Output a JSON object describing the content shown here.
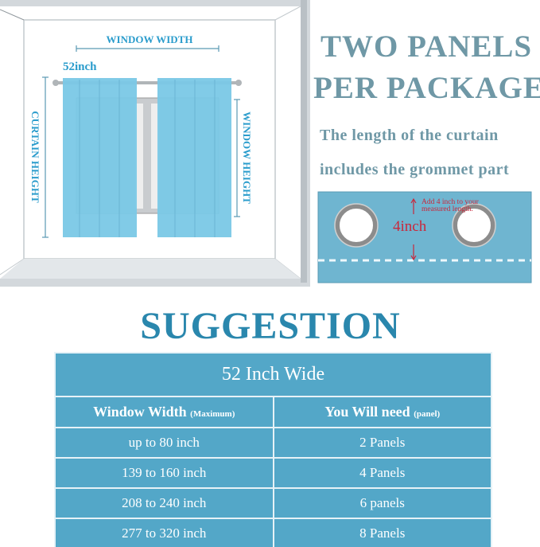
{
  "diagram": {
    "window_width_label": "WINDOW WIDTH",
    "panel_width_label": "52inch",
    "curtain_height_label": "CURTAIN HEIGHT",
    "window_height_label": "WINDOW HEIGHT"
  },
  "headline": {
    "line1": "TWO PANELS",
    "line2": "PER PACKAGE"
  },
  "note": {
    "line1": "The length of the curtain",
    "line2": "includes the grommet  part"
  },
  "grommet": {
    "measure": "4inch",
    "tip_line1": "Add 4 inch to your",
    "tip_line2": "measured length."
  },
  "suggestion": {
    "title": "SUGGESTION",
    "table_title": "52 Inch Wide",
    "col1": "Window Width",
    "col1_note": "(Maximum)",
    "col2": "You Will need",
    "col2_note": "(panel)",
    "rows": [
      {
        "width": "up to 80 inch",
        "need": "2 Panels"
      },
      {
        "width": "139 to 160 inch",
        "need": "4 Panels"
      },
      {
        "width": "208 to 240 inch",
        "need": "6 panels"
      },
      {
        "width": "277 to 320 inch",
        "need": "8 Panels"
      }
    ]
  },
  "colors": {
    "curtain": "#7ac8e6",
    "table": "#53a7c8",
    "headline": "#6f98a6",
    "accent_red": "#c8283c"
  }
}
